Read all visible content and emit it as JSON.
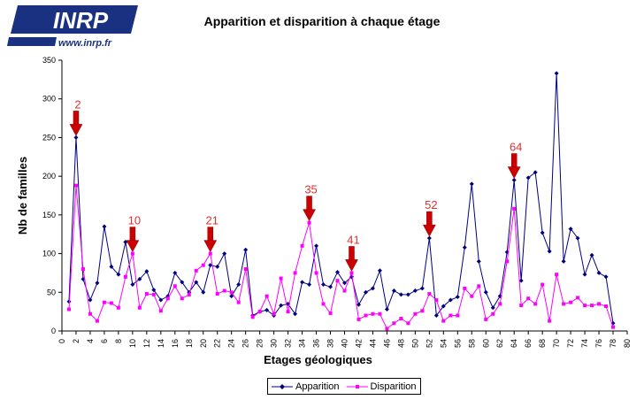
{
  "logo": {
    "text": "INRP",
    "url_text": "www.inrp.fr"
  },
  "colors": {
    "apparition": "#000080",
    "disparition": "#ff00ff",
    "arrow": "#cc0000",
    "annotation": "#e03030"
  },
  "chart_data": {
    "type": "line",
    "title": "Apparition et disparition à chaque étage",
    "xlabel": "Etages géologiques",
    "ylabel": "Nb de familles",
    "xlim": [
      0,
      80
    ],
    "ylim": [
      0,
      350
    ],
    "x_ticks": [
      0,
      2,
      4,
      6,
      8,
      10,
      12,
      14,
      16,
      18,
      20,
      22,
      24,
      26,
      28,
      30,
      32,
      34,
      36,
      38,
      40,
      42,
      44,
      46,
      48,
      50,
      52,
      54,
      56,
      58,
      60,
      62,
      64,
      66,
      68,
      70,
      72,
      74,
      76,
      78,
      80
    ],
    "y_ticks": [
      0,
      50,
      100,
      150,
      200,
      250,
      300,
      350
    ],
    "grid": false,
    "legend": "bottom",
    "x": [
      1,
      2,
      3,
      4,
      5,
      6,
      7,
      8,
      9,
      10,
      11,
      12,
      13,
      14,
      15,
      16,
      17,
      18,
      19,
      20,
      21,
      22,
      23,
      24,
      25,
      26,
      27,
      28,
      29,
      30,
      31,
      32,
      33,
      34,
      35,
      36,
      37,
      38,
      39,
      40,
      41,
      42,
      43,
      44,
      45,
      46,
      47,
      48,
      49,
      50,
      51,
      52,
      53,
      54,
      55,
      56,
      57,
      58,
      59,
      60,
      61,
      62,
      63,
      64,
      65,
      66,
      67,
      68,
      69,
      70,
      71,
      72,
      73,
      74,
      75,
      76,
      77,
      78
    ],
    "series": [
      {
        "name": "Apparition",
        "values": [
          38,
          250,
          67,
          40,
          62,
          135,
          83,
          73,
          115,
          60,
          67,
          77,
          53,
          40,
          45,
          75,
          63,
          50,
          63,
          50,
          85,
          83,
          100,
          45,
          60,
          105,
          20,
          25,
          27,
          20,
          33,
          35,
          22,
          63,
          60,
          110,
          60,
          57,
          76,
          62,
          70,
          34,
          50,
          55,
          78,
          28,
          52,
          47,
          47,
          52,
          55,
          120,
          20,
          32,
          40,
          44,
          108,
          190,
          90,
          50,
          30,
          45,
          102,
          195,
          65,
          198,
          205,
          127,
          103,
          333,
          90,
          132,
          120,
          73,
          98,
          75,
          70,
          10
        ]
      },
      {
        "name": "Disparition",
        "values": [
          28,
          188,
          80,
          22,
          13,
          37,
          36,
          30,
          70,
          100,
          30,
          48,
          47,
          26,
          42,
          58,
          42,
          47,
          78,
          85,
          100,
          48,
          52,
          50,
          37,
          80,
          18,
          25,
          45,
          22,
          68,
          25,
          75,
          110,
          140,
          75,
          35,
          23,
          65,
          52,
          75,
          15,
          20,
          22,
          22,
          3,
          10,
          16,
          10,
          22,
          26,
          48,
          40,
          13,
          20,
          20,
          55,
          45,
          58,
          15,
          22,
          35,
          90,
          158,
          33,
          42,
          35,
          60,
          13,
          73,
          35,
          37,
          43,
          33,
          33,
          35,
          32,
          5
        ]
      }
    ],
    "annotations": [
      {
        "label": "2",
        "x": 2,
        "y": 250
      },
      {
        "label": "10",
        "x": 10,
        "y": 100
      },
      {
        "label": "21",
        "x": 21,
        "y": 100
      },
      {
        "label": "35",
        "x": 35,
        "y": 140
      },
      {
        "label": "41",
        "x": 41,
        "y": 75
      },
      {
        "label": "52",
        "x": 52,
        "y": 120
      },
      {
        "label": "64",
        "x": 64,
        "y": 195
      }
    ]
  }
}
